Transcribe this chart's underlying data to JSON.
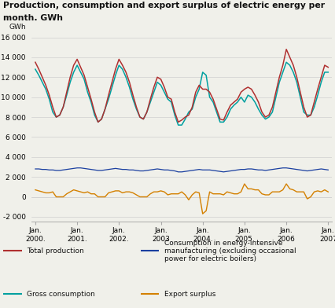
{
  "title_line1": "Production, consumption and export surplus of electric energy per",
  "title_line2": "month. GWh",
  "ylabel": "GWh",
  "ylim": [
    -2500,
    16500
  ],
  "yticks": [
    -2000,
    0,
    2000,
    4000,
    6000,
    8000,
    10000,
    12000,
    14000,
    16000
  ],
  "ytick_labels": [
    "-2 000",
    "0",
    "2 000",
    "4 000",
    "6 000",
    "8 000",
    "10 000",
    "12 000",
    "14 000",
    "16 000"
  ],
  "colors": {
    "total_production": "#b03030",
    "energy_intensive": "#1a3fa0",
    "gross_consumption": "#00a0a0",
    "export_surplus": "#d48000"
  },
  "legend": {
    "total_production": "Total production",
    "energy_intensive": "Consumption in energy-intensive\nmanufacturing (excluding occasional\npower for electric boilers)",
    "gross_consumption": "Gross consumption",
    "export_surplus": "Export surplus"
  },
  "background": "#f0f0ea",
  "grid_color": "#d0d0d0",
  "jan_ticks": [
    0,
    12,
    24,
    36,
    48,
    60,
    72,
    84
  ],
  "jan_labels": [
    "Jan.\n2000.",
    "Jan.\n2001.",
    "Jan.\n2002.",
    "Jan.\n2003",
    "Jan.\n2004.",
    "Jan.\n2005.",
    "Jan.\n2006",
    "Jan.\n2007"
  ],
  "total_production": [
    13500,
    12800,
    12000,
    11200,
    10200,
    9000,
    8000,
    8200,
    9000,
    10500,
    12000,
    13200,
    13800,
    13000,
    12200,
    11000,
    9800,
    8500,
    7500,
    7800,
    8800,
    10200,
    11500,
    12800,
    13800,
    13200,
    12500,
    11500,
    10200,
    9000,
    8000,
    7800,
    8500,
    9800,
    11000,
    12000,
    11800,
    11000,
    10000,
    9800,
    8500,
    7500,
    7700,
    8000,
    8200,
    9000,
    10500,
    11200,
    10800,
    10800,
    10500,
    9800,
    8800,
    7800,
    7700,
    8500,
    9200,
    9500,
    9800,
    10500,
    10800,
    11000,
    10800,
    10200,
    9500,
    8500,
    8000,
    8200,
    9000,
    10500,
    12000,
    13200,
    14800,
    14000,
    13200,
    12000,
    10500,
    9000,
    8000,
    8200,
    9500,
    10800,
    12000,
    13200,
    13000
  ],
  "gross_consumption": [
    12800,
    12200,
    11500,
    10800,
    9800,
    8500,
    8000,
    8200,
    9000,
    10200,
    11500,
    12500,
    13200,
    12500,
    11800,
    10500,
    9500,
    8200,
    7500,
    7800,
    8800,
    9800,
    11000,
    12200,
    13200,
    12800,
    12000,
    11000,
    9800,
    8800,
    8000,
    7800,
    8500,
    9500,
    10500,
    11500,
    11200,
    10500,
    9800,
    9500,
    8200,
    7200,
    7200,
    7800,
    8500,
    8800,
    10000,
    10800,
    12500,
    12200,
    10000,
    9500,
    8500,
    7500,
    7500,
    8000,
    8800,
    9200,
    9500,
    10000,
    9500,
    10200,
    10000,
    9500,
    8800,
    8200,
    7800,
    8000,
    8500,
    10000,
    11500,
    12500,
    13500,
    13200,
    12500,
    11500,
    10000,
    8500,
    8200,
    8200,
    9000,
    10200,
    11500,
    12500,
    12500
  ],
  "energy_intensive": [
    2800,
    2800,
    2750,
    2750,
    2700,
    2700,
    2650,
    2650,
    2700,
    2750,
    2800,
    2850,
    2900,
    2900,
    2850,
    2800,
    2750,
    2700,
    2650,
    2650,
    2700,
    2750,
    2800,
    2850,
    2800,
    2750,
    2750,
    2700,
    2700,
    2650,
    2600,
    2600,
    2650,
    2700,
    2750,
    2800,
    2750,
    2700,
    2700,
    2650,
    2600,
    2500,
    2500,
    2550,
    2600,
    2650,
    2700,
    2750,
    2700,
    2700,
    2700,
    2650,
    2600,
    2550,
    2500,
    2550,
    2600,
    2650,
    2700,
    2750,
    2750,
    2800,
    2800,
    2750,
    2700,
    2700,
    2650,
    2700,
    2750,
    2800,
    2850,
    2900,
    2900,
    2850,
    2800,
    2750,
    2700,
    2650,
    2600,
    2650,
    2700,
    2750,
    2800,
    2750,
    2700
  ]
}
